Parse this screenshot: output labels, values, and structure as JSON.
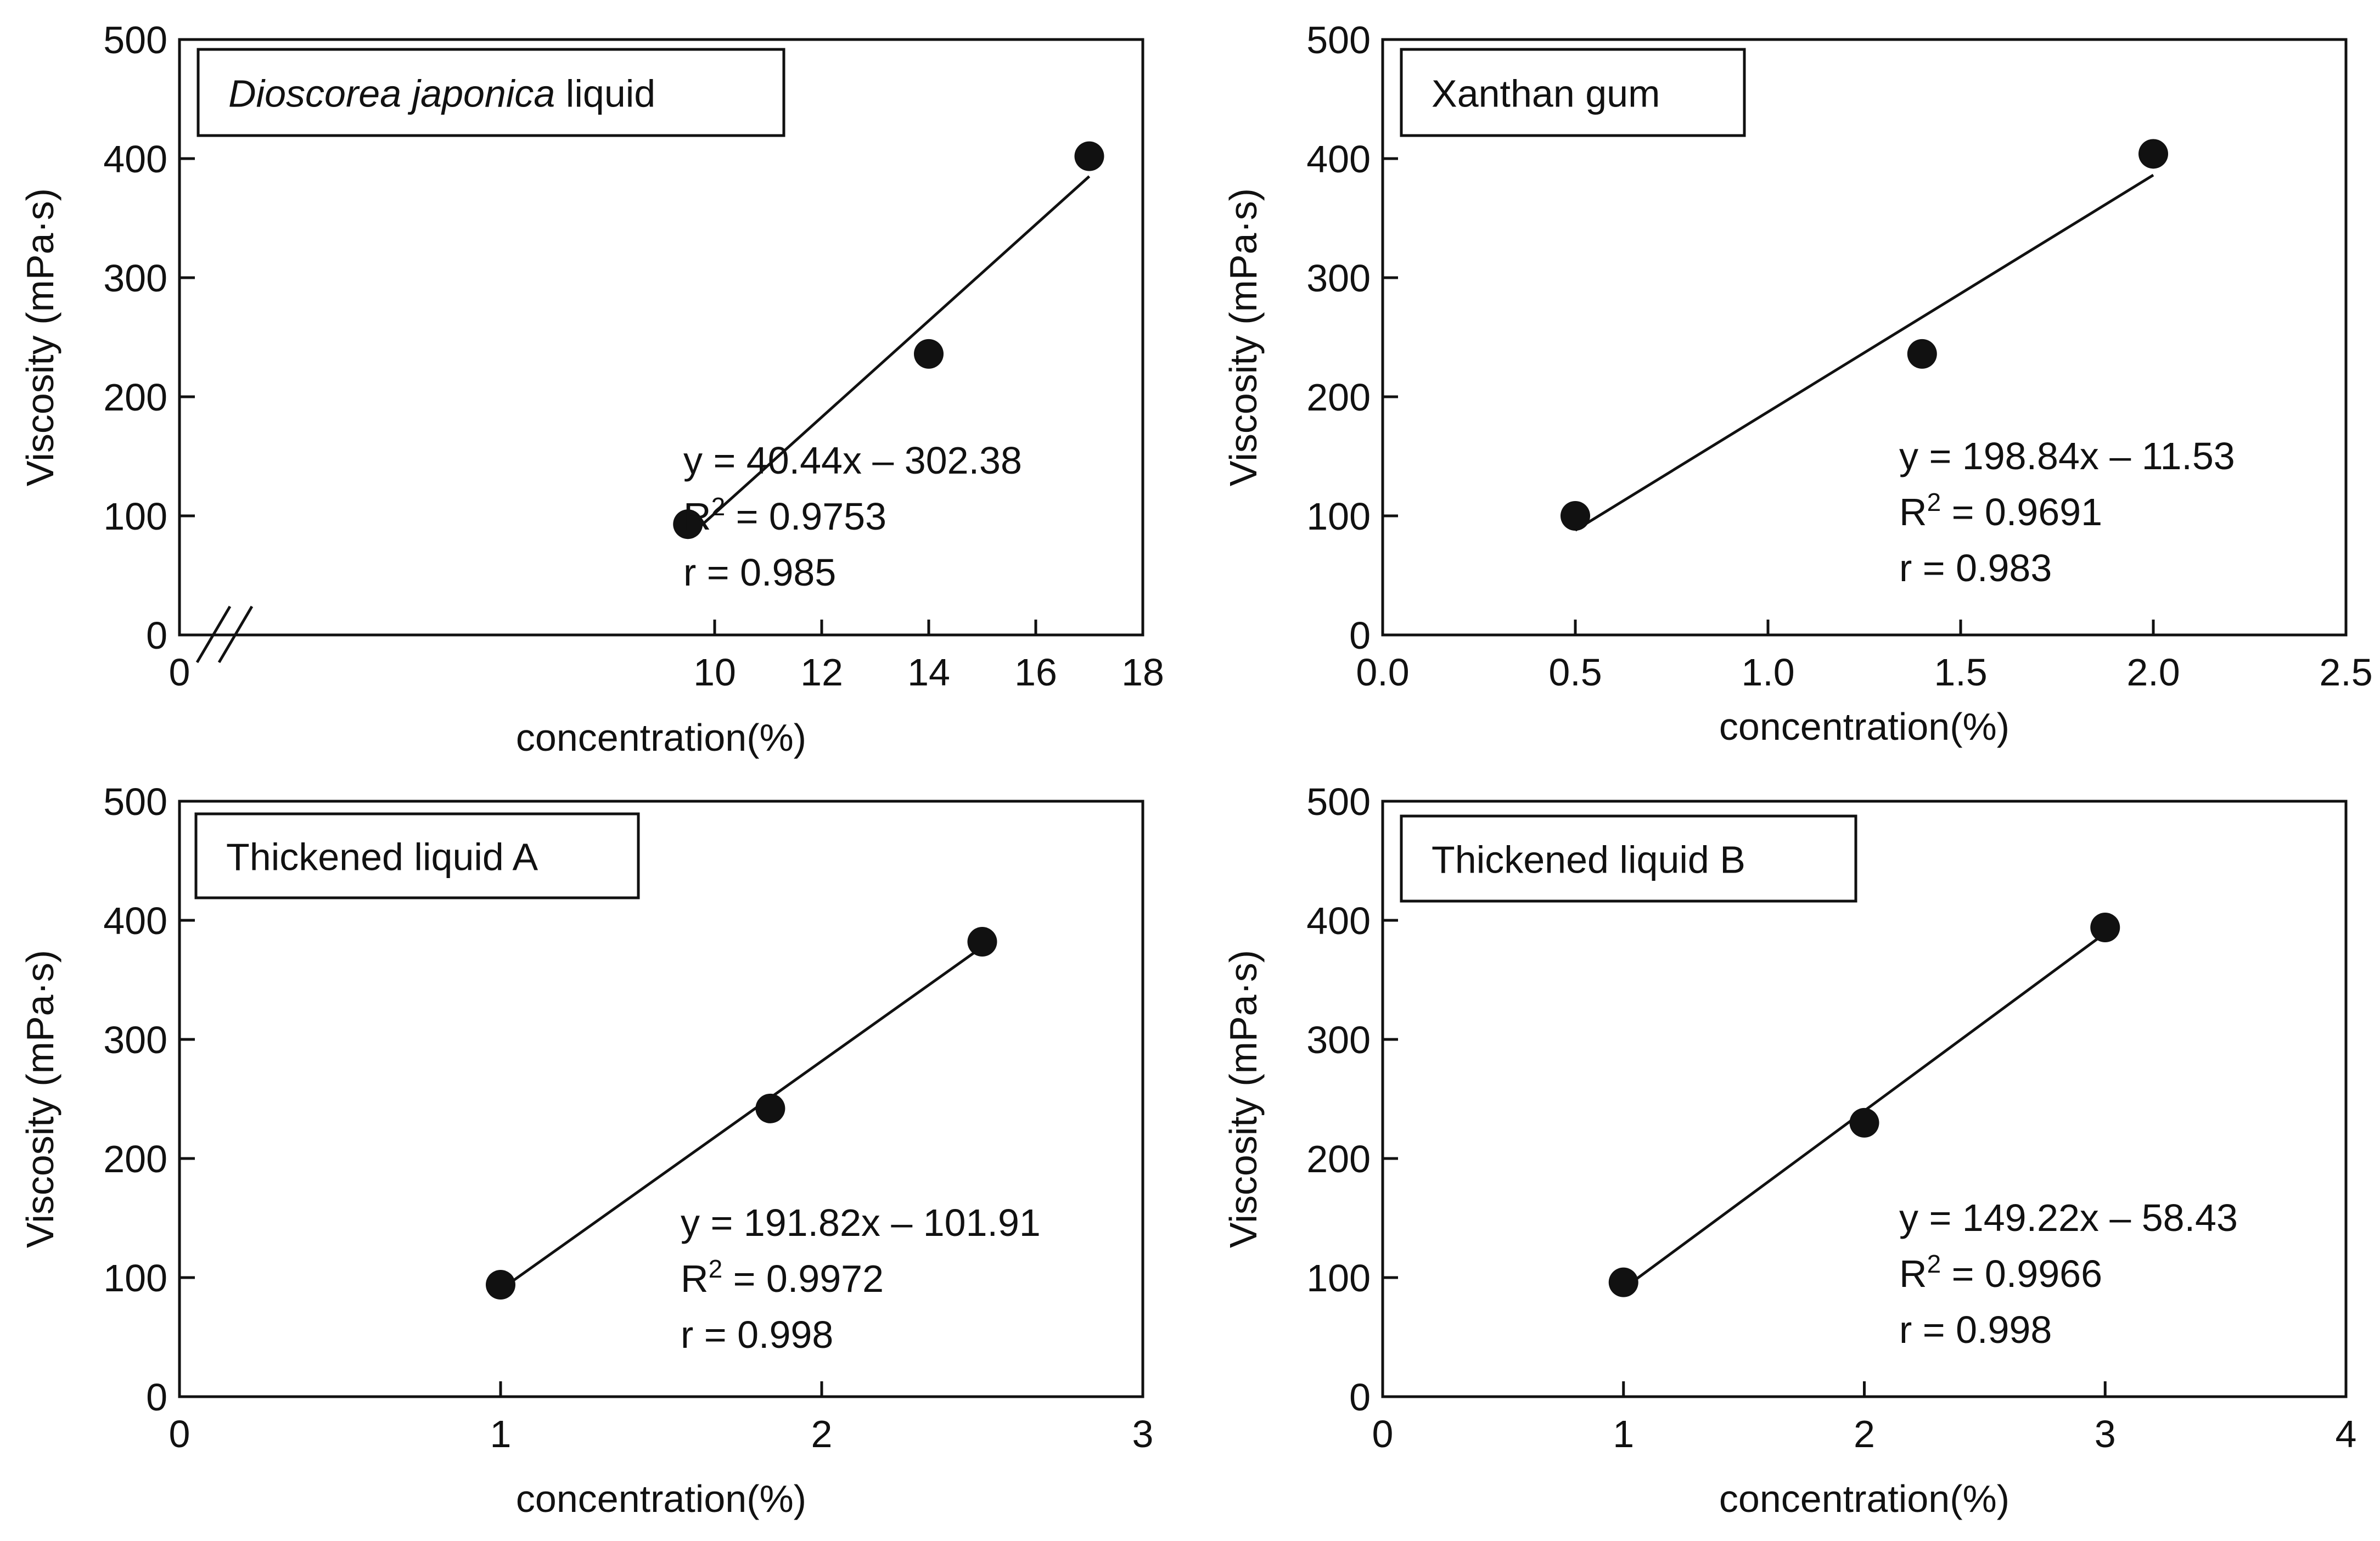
{
  "figure": {
    "charts_count": 4
  },
  "colors": {
    "ink": "#111111",
    "background": "#ffffff"
  },
  "chart_data": [
    {
      "type": "scatter",
      "title_prefix_italic": "Dioscorea japonica",
      "title_suffix": " liquid",
      "xlabel": "concentration(%)",
      "ylabel": "Viscosity (mPa·s)",
      "xlim": [
        0,
        18
      ],
      "ylim": [
        0,
        500
      ],
      "x_ticks": [
        0,
        10,
        12,
        14,
        16,
        18
      ],
      "y_ticks": [
        0,
        100,
        200,
        300,
        400,
        500
      ],
      "axis_break": true,
      "points": [
        {
          "x": 9.5,
          "y": 93
        },
        {
          "x": 14,
          "y": 236
        },
        {
          "x": 17,
          "y": 402
        }
      ],
      "fit": {
        "slope": 40.44,
        "intercept": -302.38,
        "x_start": 9.5,
        "x_end": 17
      },
      "annotations": [
        "y = 40.44x – 302.38",
        "R",
        "2",
        " = 0.9753",
        "r = 0.985"
      ]
    },
    {
      "type": "scatter",
      "title": "Xanthan gum",
      "xlabel": "concentration(%)",
      "ylabel": "Viscosity (mPa·s)",
      "xlim": [
        0,
        2.5
      ],
      "ylim": [
        0,
        500
      ],
      "x_ticks": [
        "0.0",
        "0.5",
        "1.0",
        "1.5",
        "2.0",
        "2.5"
      ],
      "y_ticks": [
        0,
        100,
        200,
        300,
        400,
        500
      ],
      "axis_break": false,
      "points": [
        {
          "x": 0.5,
          "y": 100
        },
        {
          "x": 1.4,
          "y": 236
        },
        {
          "x": 2.0,
          "y": 404
        }
      ],
      "fit": {
        "slope": 198.84,
        "intercept": -11.53,
        "x_start": 0.5,
        "x_end": 2.0
      },
      "annotations": [
        "y = 198.84x – 11.53",
        "R",
        "2",
        " = 0.9691",
        "r = 0.983"
      ]
    },
    {
      "type": "scatter",
      "title": "Thickened liquid A",
      "xlabel": "concentration(%)",
      "ylabel": "Viscosity (mPa·s)",
      "xlim": [
        0,
        3
      ],
      "ylim": [
        0,
        500
      ],
      "x_ticks": [
        0,
        1,
        2,
        3
      ],
      "y_ticks": [
        0,
        100,
        200,
        300,
        400,
        500
      ],
      "axis_break": false,
      "points": [
        {
          "x": 1.0,
          "y": 94
        },
        {
          "x": 1.84,
          "y": 242
        },
        {
          "x": 2.5,
          "y": 382
        }
      ],
      "fit": {
        "slope": 191.82,
        "intercept": -101.91,
        "x_start": 1.0,
        "x_end": 2.5
      },
      "annotations": [
        "y = 191.82x – 101.91",
        "R",
        "2",
        " = 0.9972",
        "r = 0.998"
      ]
    },
    {
      "type": "scatter",
      "title": "Thickened liquid B",
      "xlabel": "concentration(%)",
      "ylabel": "Viscosity (mPa·s)",
      "xlim": [
        0,
        4
      ],
      "ylim": [
        0,
        500
      ],
      "x_ticks": [
        0,
        1,
        2,
        3,
        4
      ],
      "y_ticks": [
        0,
        100,
        200,
        300,
        400,
        500
      ],
      "axis_break": false,
      "points": [
        {
          "x": 1.0,
          "y": 96
        },
        {
          "x": 2.0,
          "y": 230
        },
        {
          "x": 3.0,
          "y": 394
        }
      ],
      "fit": {
        "slope": 149.22,
        "intercept": -58.43,
        "x_start": 1.0,
        "x_end": 3.0
      },
      "annotations": [
        "y = 149.22x – 58.43",
        "R",
        "2",
        " = 0.9966",
        "r = 0.998"
      ]
    }
  ]
}
